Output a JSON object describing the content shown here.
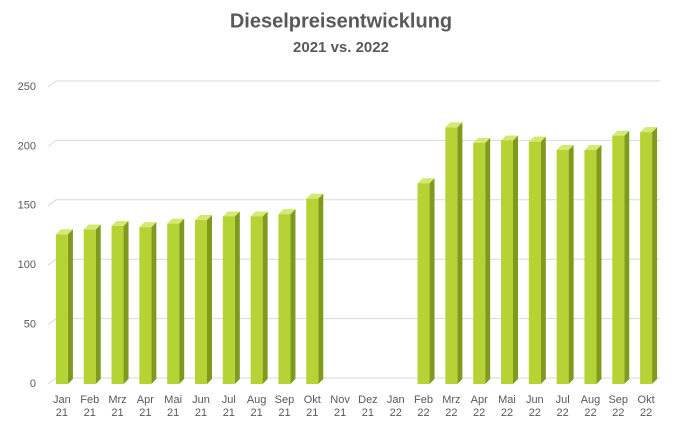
{
  "chart_data": {
    "type": "bar",
    "title": "Dieselpreisentwicklung",
    "subtitle": "2021 vs. 2022",
    "categories": [
      "Jan\n21",
      "Feb\n21",
      "Mrz\n21",
      "Apr\n21",
      "Mai\n21",
      "Jun\n21",
      "Jul\n21",
      "Aug\n21",
      "Sep\n21",
      "Okt\n21",
      "Nov\n21",
      "Dez\n21",
      "Jan\n22",
      "Feb\n22",
      "Mrz\n22",
      "Apr\n22",
      "Mai\n22",
      "Jun\n22",
      "Jul\n22",
      "Aug\n22",
      "Sep\n22",
      "Okt\n22"
    ],
    "values": [
      126,
      130,
      133,
      132,
      135,
      138,
      141,
      141,
      143,
      156,
      null,
      null,
      null,
      169,
      216,
      203,
      205,
      204,
      197,
      197,
      209,
      212
    ],
    "color": "#b5d334",
    "ylim": [
      0,
      250
    ],
    "yticks": [
      0,
      50,
      100,
      150,
      200,
      250
    ],
    "grid": true
  }
}
